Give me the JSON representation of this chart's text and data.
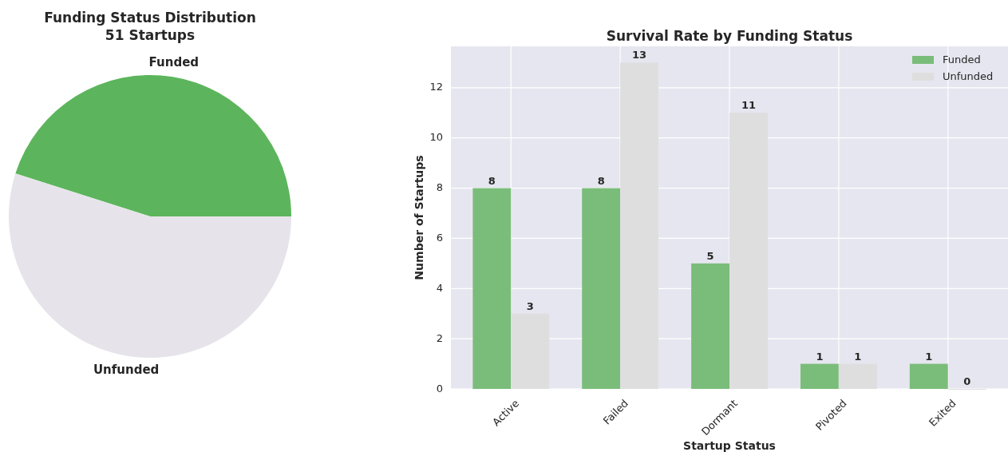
{
  "chart_data": [
    {
      "type": "pie",
      "title": "Funding Status Distribution\n51 Startups",
      "categories": [
        "Funded",
        "Unfunded"
      ],
      "values": [
        45.1,
        54.9
      ],
      "colors": [
        "#5cb55c",
        "#e6e4ea"
      ]
    },
    {
      "type": "bar",
      "title": "Survival Rate by Funding Status",
      "xlabel": "Startup Status",
      "ylabel": "Number of Startups",
      "categories": [
        "Active",
        "Failed",
        "Dormant",
        "Pivoted",
        "Exited"
      ],
      "series": [
        {
          "name": "Funded",
          "color": "#7abd7a",
          "values": [
            8,
            8,
            5,
            1,
            1
          ]
        },
        {
          "name": "Unfunded",
          "color": "#dedede",
          "values": [
            3,
            13,
            11,
            1,
            0
          ]
        }
      ],
      "ylim": [
        0,
        13.65
      ],
      "yticks": [
        0,
        2,
        4,
        6,
        8,
        10,
        12
      ],
      "grid": true,
      "legend": "top right",
      "data_labels": true
    }
  ]
}
